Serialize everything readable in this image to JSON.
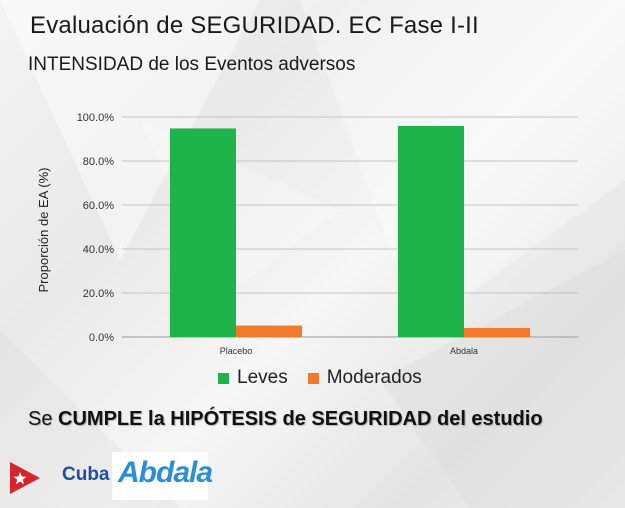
{
  "slide": {
    "title": "Evaluación de SEGURIDAD. EC Fase I-II",
    "subtitle": "INTENSIDAD de los Eventos adversos",
    "conclusion_prefix": "Se ",
    "conclusion_bold": "CUMPLE la HIPÓTESIS de SEGURIDAD del estudio"
  },
  "logos": {
    "cuba_label": "Cuba",
    "abdala_label": "Abdala",
    "cuba_icon": "cuba-flag-icon"
  },
  "colors": {
    "leves": "#1fb34b",
    "moderados": "#f07a2a",
    "text": "#1a1a1a",
    "brand_blue": "#2b8fd6"
  },
  "chart_data": {
    "type": "bar",
    "categories": [
      "Placebo",
      "Abdala"
    ],
    "series": [
      {
        "name": "Leves",
        "values": [
          94.8,
          95.9
        ]
      },
      {
        "name": "Moderados",
        "values": [
          5.2,
          4.1
        ]
      }
    ],
    "title": "",
    "xlabel": "",
    "ylabel": "Proporción de EA   (%)",
    "ylim": [
      0,
      100
    ],
    "yticks": [
      "0.0%",
      "20.0%",
      "40.0%",
      "60.0%",
      "80.0%",
      "100.0%"
    ],
    "grid": true,
    "legend_position": "bottom"
  }
}
